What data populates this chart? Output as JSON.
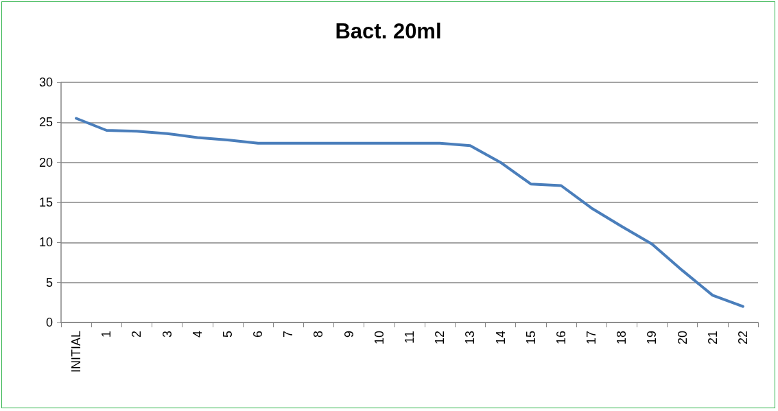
{
  "chart_data": {
    "type": "line",
    "title": "Bact. 20ml",
    "categories": [
      "INITIAL",
      "1",
      "2",
      "3",
      "4",
      "5",
      "6",
      "7",
      "8",
      "9",
      "10",
      "11",
      "12",
      "13",
      "14",
      "15",
      "16",
      "17",
      "18",
      "19",
      "20",
      "21",
      "22"
    ],
    "series": [
      {
        "color": "#4a7ebb",
        "values": [
          25.5,
          24.0,
          23.9,
          23.6,
          23.1,
          22.8,
          22.4,
          22.4,
          22.4,
          22.4,
          22.4,
          22.4,
          22.4,
          22.1,
          20.0,
          17.3,
          17.1,
          14.3,
          12.0,
          9.8,
          6.5,
          3.4,
          2.0
        ]
      }
    ],
    "ylim": [
      0,
      30
    ],
    "yticks": [
      0,
      5,
      10,
      15,
      20,
      25,
      30
    ],
    "grid": "y",
    "marker": "none",
    "line_style": "solid"
  }
}
